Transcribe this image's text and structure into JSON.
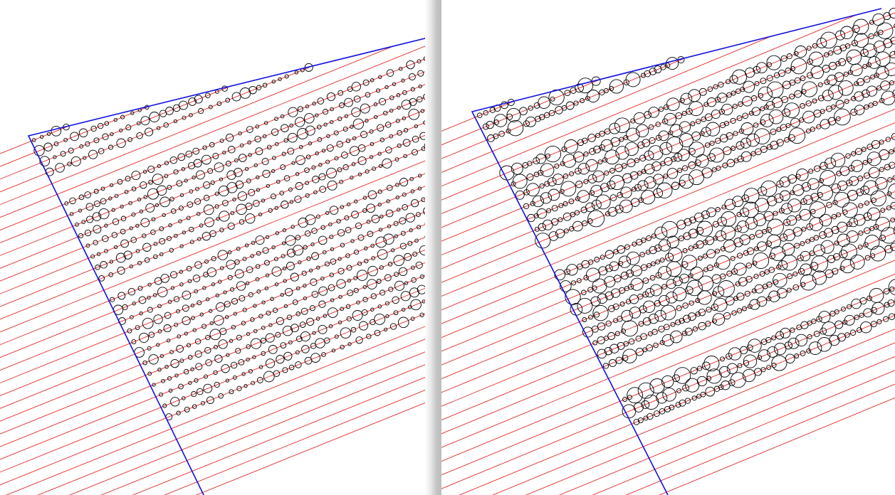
{
  "panels": [
    {
      "id": "left",
      "boundary_color": "#1010e0",
      "line_color": "#e01010",
      "circle_color": "#000000",
      "stripe_count": 34,
      "circle_density": "sparse"
    },
    {
      "id": "right",
      "boundary_color": "#1010e0",
      "line_color": "#e01010",
      "circle_color": "#000000",
      "stripe_count": 34,
      "circle_density": "dense"
    }
  ]
}
